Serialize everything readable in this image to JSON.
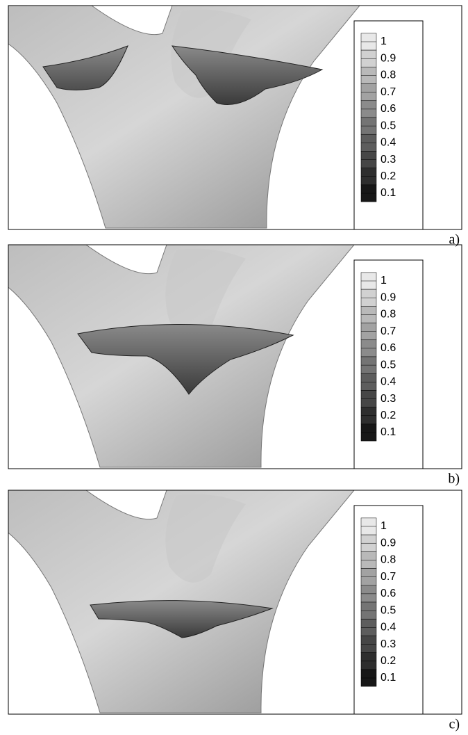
{
  "panels": [
    {
      "label": "a)",
      "colorbar": {
        "ticks": [
          1,
          0.9,
          0.8,
          0.7,
          0.6,
          0.5,
          0.4,
          0.3,
          0.2,
          0.1
        ]
      }
    },
    {
      "label": "b)",
      "colorbar": {
        "ticks": [
          1,
          0.9,
          0.8,
          0.7,
          0.6,
          0.5,
          0.4,
          0.3,
          0.2,
          0.1
        ]
      }
    },
    {
      "label": "c)",
      "colorbar": {
        "ticks": [
          1,
          0.9,
          0.8,
          0.7,
          0.6,
          0.5,
          0.4,
          0.3,
          0.2,
          0.1
        ]
      }
    }
  ]
}
